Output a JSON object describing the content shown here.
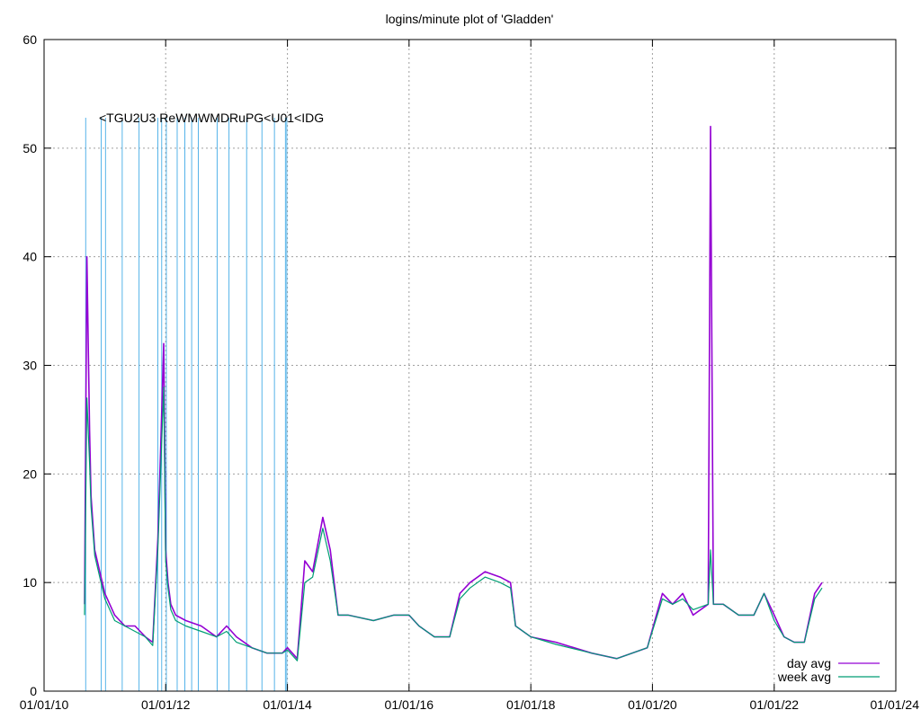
{
  "chart_data": {
    "type": "line",
    "title": "logins/minute plot of 'Gladden'",
    "xlabel": "",
    "ylabel": "",
    "ylim": [
      0,
      60
    ],
    "yticks": [
      0,
      10,
      20,
      30,
      40,
      50,
      60
    ],
    "xlim": [
      "2010-01-01",
      "2024-01-01"
    ],
    "xticks": [
      "01/01/10",
      "01/01/12",
      "01/01/14",
      "01/01/16",
      "01/01/18",
      "01/01/20",
      "01/01/22",
      "01/01/24"
    ],
    "grid": true,
    "legend_position": "bottom-right",
    "colors": {
      "day_avg": "#9400d3",
      "week_avg": "#009e73",
      "event": "#56b4e9"
    },
    "series": [
      {
        "name": "day avg",
        "x": [
          "2010-09-01",
          "2010-09-15",
          "2010-10-01",
          "2010-10-10",
          "2010-11-01",
          "2010-12-01",
          "2011-01-01",
          "2011-03-01",
          "2011-05-01",
          "2011-07-01",
          "2011-09-01",
          "2011-10-15",
          "2011-11-15",
          "2011-12-01",
          "2011-12-20",
          "2012-01-01",
          "2012-01-15",
          "2012-02-01",
          "2012-03-01",
          "2012-05-01",
          "2012-08-01",
          "2012-11-01",
          "2013-01-01",
          "2013-03-01",
          "2013-06-01",
          "2013-09-01",
          "2013-12-01",
          "2014-01-01",
          "2014-03-01",
          "2014-04-15",
          "2014-06-01",
          "2014-08-01",
          "2014-09-15",
          "2014-11-01",
          "2015-01-01",
          "2015-06-01",
          "2015-10-01",
          "2016-01-01",
          "2016-03-01",
          "2016-06-01",
          "2016-09-01",
          "2016-11-01",
          "2017-01-01",
          "2017-04-01",
          "2017-07-01",
          "2017-09-01",
          "2017-10-01",
          "2018-01-01",
          "2018-06-01",
          "2019-01-01",
          "2019-06-01",
          "2019-12-01",
          "2020-03-01",
          "2020-05-01",
          "2020-07-01",
          "2020-09-01",
          "2020-12-01",
          "2020-12-15",
          "2021-01-01",
          "2021-03-01",
          "2021-06-01",
          "2021-09-01",
          "2021-11-01",
          "2022-01-01",
          "2022-03-01",
          "2022-05-01",
          "2022-07-01",
          "2022-09-01",
          "2022-10-15"
        ],
        "values": [
          8,
          40,
          24,
          18,
          13,
          11,
          9,
          7,
          6,
          6,
          5,
          4.5,
          14,
          22,
          32,
          13,
          10,
          8,
          7,
          6.5,
          6,
          5,
          6,
          5,
          4,
          3.5,
          3.5,
          4,
          3,
          12,
          11,
          16,
          13,
          7,
          7,
          6.5,
          7,
          7,
          6,
          5,
          5,
          9,
          10,
          11,
          10.5,
          10,
          6,
          5,
          4.5,
          3.5,
          3,
          4,
          9,
          8,
          9,
          7,
          8,
          52,
          8,
          8,
          7,
          7,
          9,
          7,
          5,
          4.5,
          4.5,
          9,
          10
        ]
      },
      {
        "name": "week avg",
        "x": [
          "2010-09-01",
          "2010-09-15",
          "2010-10-01",
          "2010-10-10",
          "2010-11-01",
          "2010-12-01",
          "2011-01-01",
          "2011-03-01",
          "2011-05-01",
          "2011-07-01",
          "2011-09-01",
          "2011-10-15",
          "2011-11-15",
          "2011-12-01",
          "2011-12-20",
          "2012-01-01",
          "2012-01-15",
          "2012-02-01",
          "2012-03-01",
          "2012-05-01",
          "2012-08-01",
          "2012-11-01",
          "2013-01-01",
          "2013-03-01",
          "2013-06-01",
          "2013-09-01",
          "2013-12-01",
          "2014-01-01",
          "2014-03-01",
          "2014-04-15",
          "2014-06-01",
          "2014-08-01",
          "2014-09-15",
          "2014-11-01",
          "2015-01-01",
          "2015-06-01",
          "2015-10-01",
          "2016-01-01",
          "2016-03-01",
          "2016-06-01",
          "2016-09-01",
          "2016-11-01",
          "2017-01-01",
          "2017-04-01",
          "2017-07-01",
          "2017-09-01",
          "2017-10-01",
          "2018-01-01",
          "2018-06-01",
          "2019-01-01",
          "2019-06-01",
          "2019-12-01",
          "2020-03-01",
          "2020-05-01",
          "2020-07-01",
          "2020-09-01",
          "2020-12-01",
          "2020-12-15",
          "2021-01-01",
          "2021-03-01",
          "2021-06-01",
          "2021-09-01",
          "2021-11-01",
          "2022-01-01",
          "2022-03-01",
          "2022-05-01",
          "2022-07-01",
          "2022-09-01",
          "2022-10-15"
        ],
        "values": [
          7,
          27,
          21,
          17,
          12.5,
          10.5,
          8.5,
          6.5,
          6,
          5.5,
          5,
          4.2,
          13,
          20,
          28,
          12,
          9.5,
          7.5,
          6.5,
          6,
          5.5,
          5,
          5.5,
          4.5,
          4,
          3.5,
          3.5,
          3.8,
          2.8,
          10,
          10.5,
          15,
          12,
          7,
          7,
          6.5,
          7,
          7,
          6,
          5,
          5,
          8.5,
          9.5,
          10.5,
          10,
          9.5,
          6,
          5,
          4.3,
          3.5,
          3,
          4,
          8.5,
          8,
          8.5,
          7.5,
          8,
          13,
          8,
          8,
          7,
          7,
          9,
          6.5,
          5,
          4.5,
          4.5,
          8.5,
          9.5
        ]
      }
    ],
    "events": [
      {
        "date": "2010-09-08",
        "label": ""
      },
      {
        "date": "2010-12-10",
        "label": ""
      },
      {
        "date": "2011-01-05",
        "label": ""
      },
      {
        "date": "2011-04-15",
        "label": ""
      },
      {
        "date": "2011-07-25",
        "label": ""
      },
      {
        "date": "2011-11-15",
        "label": ""
      },
      {
        "date": "2011-12-08",
        "label": ""
      },
      {
        "date": "2012-01-05",
        "label": ""
      },
      {
        "date": "2012-03-10",
        "label": ""
      },
      {
        "date": "2012-04-25",
        "label": ""
      },
      {
        "date": "2012-06-05",
        "label": ""
      },
      {
        "date": "2012-07-15",
        "label": ""
      },
      {
        "date": "2012-11-05",
        "label": ""
      },
      {
        "date": "2013-01-15",
        "label": ""
      },
      {
        "date": "2013-05-01",
        "label": ""
      },
      {
        "date": "2013-08-01",
        "label": ""
      },
      {
        "date": "2013-10-15",
        "label": ""
      },
      {
        "date": "2013-12-20",
        "label": ""
      },
      {
        "date": "2013-12-28",
        "label": ""
      }
    ],
    "event_label_text": "<TGU2U3 ReWMWMDRuPG<U01<IDG",
    "legend": [
      {
        "name": "day avg",
        "key": "day_avg"
      },
      {
        "name": "week avg",
        "key": "week_avg"
      }
    ]
  }
}
